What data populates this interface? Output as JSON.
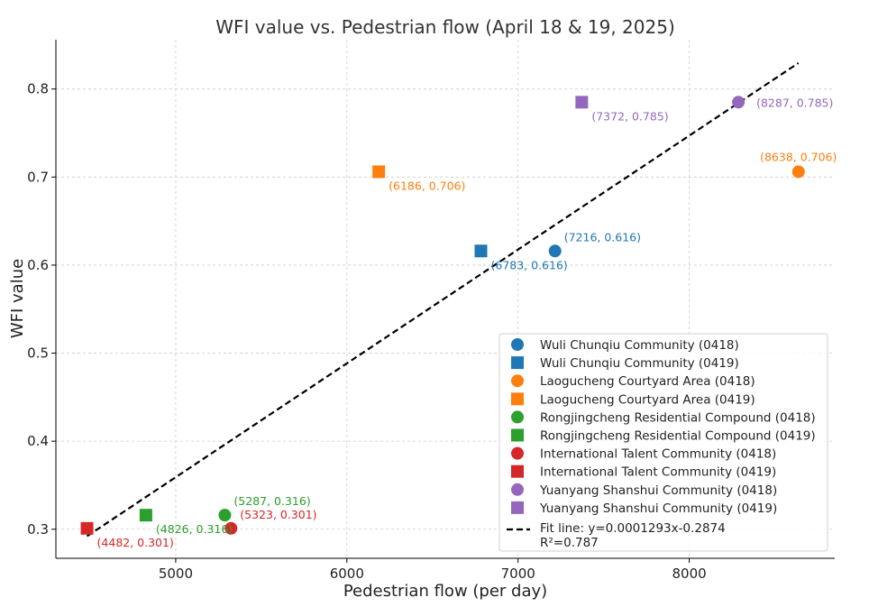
{
  "chart_data": {
    "type": "scatter",
    "title": "WFI value vs. Pedestrian flow (April 18 & 19, 2025)",
    "xlabel": "Pedestrian flow (per day)",
    "ylabel": "WFI value",
    "xlim": [
      4300,
      8850
    ],
    "ylim": [
      0.267,
      0.856
    ],
    "xticks": [
      5000,
      6000,
      7000,
      8000
    ],
    "yticks": [
      0.3,
      0.4,
      0.5,
      0.6,
      0.7,
      0.8
    ],
    "xtick_labels": [
      "5000",
      "6000",
      "7000",
      "8000"
    ],
    "ytick_labels": [
      "0.3",
      "0.4",
      "0.5",
      "0.6",
      "0.7",
      "0.8"
    ],
    "grid": true,
    "legend_position": "lower-right",
    "series": [
      {
        "name": "Wuli Chunqiu Community (0418)",
        "marker": "circle",
        "color": "#1f77b4",
        "x": 7216,
        "y": 0.616,
        "label": "(7216, 0.616)",
        "label_anchor": "upper-right"
      },
      {
        "name": "Wuli Chunqiu Community (0419)",
        "marker": "square",
        "color": "#1f77b4",
        "x": 6783,
        "y": 0.616,
        "label": "(6783, 0.616)",
        "label_anchor": "lower-right"
      },
      {
        "name": "Laogucheng Courtyard Area (0418)",
        "marker": "circle",
        "color": "#ff7f0e",
        "x": 8638,
        "y": 0.706,
        "label": "(8638, 0.706)",
        "label_anchor": "above"
      },
      {
        "name": "Laogucheng Courtyard Area (0419)",
        "marker": "square",
        "color": "#ff7f0e",
        "x": 6186,
        "y": 0.706,
        "label": "(6186, 0.706)",
        "label_anchor": "lower-right"
      },
      {
        "name": "Rongjingcheng Residential Compound (0418)",
        "marker": "circle",
        "color": "#2ca02c",
        "x": 5287,
        "y": 0.316,
        "label": "(5287, 0.316)",
        "label_anchor": "upper-right"
      },
      {
        "name": "Rongjingcheng Residential Compound (0419)",
        "marker": "square",
        "color": "#2ca02c",
        "x": 4826,
        "y": 0.316,
        "label": "(4826, 0.316)",
        "label_anchor": "lower-right"
      },
      {
        "name": "International Talent Community (0418)",
        "marker": "circle",
        "color": "#d62728",
        "x": 5323,
        "y": 0.301,
        "label": "(5323, 0.301)",
        "label_anchor": "upper-right"
      },
      {
        "name": "International Talent Community (0419)",
        "marker": "square",
        "color": "#d62728",
        "x": 4482,
        "y": 0.301,
        "label": "(4482, 0.301)",
        "label_anchor": "lower-right"
      },
      {
        "name": "Yuanyang Shanshui Community (0418)",
        "marker": "circle",
        "color": "#9467bd",
        "x": 8287,
        "y": 0.785,
        "label": "(8287, 0.785)",
        "label_anchor": "right"
      },
      {
        "name": "Yuanyang Shanshui Community (0419)",
        "marker": "square",
        "color": "#9467bd",
        "x": 7372,
        "y": 0.785,
        "label": "(7372, 0.785)",
        "label_anchor": "lower-right"
      }
    ],
    "fit_line": {
      "slope": 0.0001293,
      "intercept": -0.2874,
      "x_range": [
        4482,
        8638
      ],
      "style": "dashed",
      "color": "#000000",
      "legend_line1": "Fit line: y=0.0001293x-0.2874",
      "legend_line2": "R²=0.787"
    }
  }
}
